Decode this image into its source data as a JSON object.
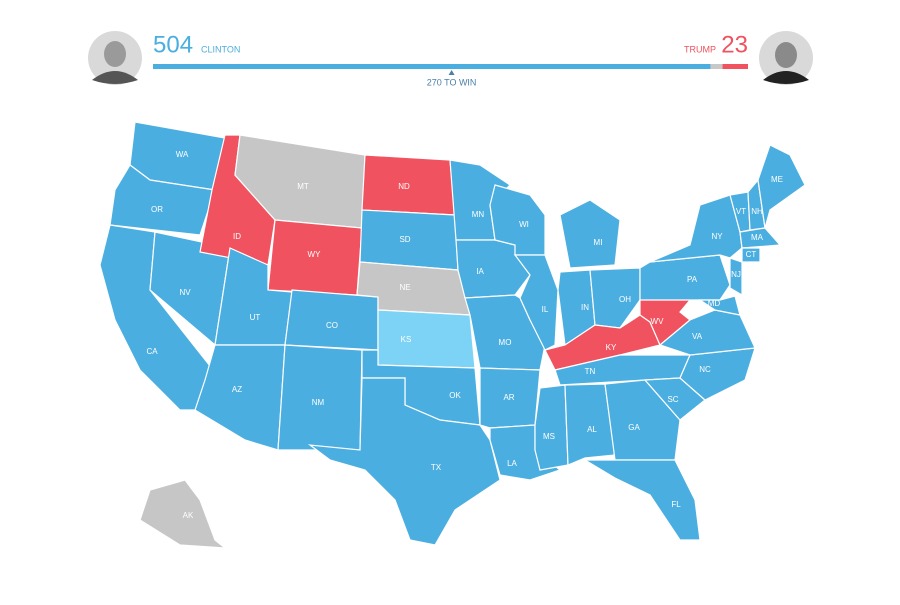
{
  "scoreboard": {
    "xlim": [
      0,
      538
    ],
    "clinton": {
      "votes": 504,
      "name": "CLINTON",
      "color": "#4baee0"
    },
    "trump": {
      "votes": 23,
      "name": "TRUMP",
      "color": "#f0525f"
    },
    "remaining_color": "#c8c8c8",
    "win": {
      "value": 270,
      "label": "270 TO WIN"
    }
  },
  "map": {
    "colors": {
      "dem": "#4baee0",
      "rep": "#f0525f",
      "tossup": "#c6c6c6",
      "lean_dem": "#7dd3f5"
    },
    "states": [
      {
        "label": "WA",
        "party": "dem"
      },
      {
        "label": "OR",
        "party": "dem"
      },
      {
        "label": "CA",
        "party": "dem"
      },
      {
        "label": "NV",
        "party": "dem"
      },
      {
        "label": "ID",
        "party": "rep"
      },
      {
        "label": "MT",
        "party": "tossup"
      },
      {
        "label": "WY",
        "party": "rep"
      },
      {
        "label": "UT",
        "party": "dem"
      },
      {
        "label": "CO",
        "party": "dem"
      },
      {
        "label": "AZ",
        "party": "dem"
      },
      {
        "label": "NM",
        "party": "dem"
      },
      {
        "label": "ND",
        "party": "rep"
      },
      {
        "label": "SD",
        "party": "dem"
      },
      {
        "label": "NE",
        "party": "tossup"
      },
      {
        "label": "KS",
        "party": "lean_dem"
      },
      {
        "label": "OK",
        "party": "dem"
      },
      {
        "label": "TX",
        "party": "dem"
      },
      {
        "label": "MN",
        "party": "dem"
      },
      {
        "label": "IA",
        "party": "dem"
      },
      {
        "label": "MO",
        "party": "dem"
      },
      {
        "label": "AR",
        "party": "dem"
      },
      {
        "label": "LA",
        "party": "dem"
      },
      {
        "label": "WI",
        "party": "dem"
      },
      {
        "label": "IL",
        "party": "dem"
      },
      {
        "label": "MI",
        "party": "dem"
      },
      {
        "label": "IN",
        "party": "dem"
      },
      {
        "label": "OH",
        "party": "dem"
      },
      {
        "label": "KY",
        "party": "rep"
      },
      {
        "label": "TN",
        "party": "dem"
      },
      {
        "label": "MS",
        "party": "dem"
      },
      {
        "label": "AL",
        "party": "dem"
      },
      {
        "label": "GA",
        "party": "dem"
      },
      {
        "label": "FL",
        "party": "dem"
      },
      {
        "label": "SC",
        "party": "dem"
      },
      {
        "label": "NC",
        "party": "dem"
      },
      {
        "label": "WV",
        "party": "rep"
      },
      {
        "label": "VA",
        "party": "dem"
      },
      {
        "label": "PA",
        "party": "dem"
      },
      {
        "label": "NY",
        "party": "dem"
      },
      {
        "label": "NJ",
        "party": "dem"
      },
      {
        "label": "MD",
        "party": "dem"
      },
      {
        "label": "VT",
        "party": "dem"
      },
      {
        "label": "NH",
        "party": "dem"
      },
      {
        "label": "ME",
        "party": "dem"
      },
      {
        "label": "MA",
        "party": "dem"
      },
      {
        "label": "CT",
        "party": "dem"
      },
      {
        "label": "AK",
        "party": "tossup"
      }
    ]
  }
}
